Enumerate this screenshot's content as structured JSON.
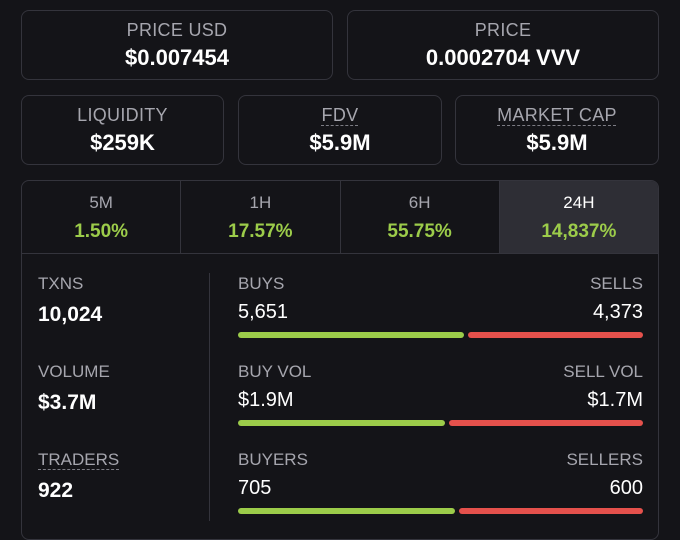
{
  "top_cards": {
    "price_usd": {
      "label": "PRICE USD",
      "value": "$0.007454"
    },
    "price_native": {
      "label": "PRICE",
      "value": "0.0002704 VVV"
    }
  },
  "metrics": {
    "liquidity": {
      "label": "LIQUIDITY",
      "value": "$259K"
    },
    "fdv": {
      "label": "FDV",
      "value": "$5.9M"
    },
    "market_cap": {
      "label": "MARKET CAP",
      "value": "$5.9M"
    }
  },
  "tabs": [
    {
      "label": "5M",
      "change": "1.50%"
    },
    {
      "label": "1H",
      "change": "17.57%"
    },
    {
      "label": "6H",
      "change": "55.75%"
    },
    {
      "label": "24H",
      "change": "14,837%"
    }
  ],
  "active_tab": "24H",
  "stats": {
    "txns": {
      "label": "TXNS",
      "value": "10,024"
    },
    "volume": {
      "label": "VOLUME",
      "value": "$3.7M"
    },
    "traders": {
      "label": "TRADERS",
      "value": "922"
    }
  },
  "splits": {
    "txns": {
      "left_label": "BUYS",
      "right_label": "SELLS",
      "left_value": "5,651",
      "right_value": "4,373",
      "left_fraction": 0.564
    },
    "volume": {
      "left_label": "BUY VOL",
      "right_label": "SELL VOL",
      "left_value": "$1.9M",
      "right_value": "$1.7M",
      "left_fraction": 0.515
    },
    "traders": {
      "left_label": "BUYERS",
      "right_label": "SELLERS",
      "left_value": "705",
      "right_value": "600",
      "left_fraction": 0.54
    }
  },
  "colors": {
    "positive": "#9ccc4a",
    "negative": "#e5514c",
    "background": "#141418",
    "border": "#34343c"
  }
}
